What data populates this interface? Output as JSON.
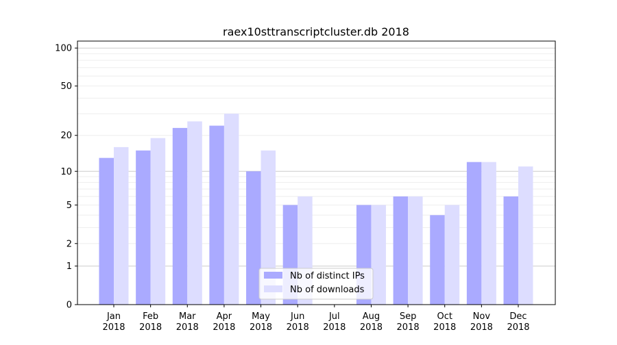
{
  "chart_data": {
    "type": "bar",
    "title": "raex10sttranscriptcluster.db 2018",
    "xlabel": "",
    "ylabel": "",
    "yscale": "log(1+y)",
    "ylim": [
      0,
      113.5
    ],
    "yticks": [
      0,
      1,
      2,
      5,
      10,
      20,
      50,
      100
    ],
    "grid": true,
    "legend_position": "bottom-center",
    "categories": [
      "Jan\n2018",
      "Feb\n2018",
      "Mar\n2018",
      "Apr\n2018",
      "May\n2018",
      "Jun\n2018",
      "Jul\n2018",
      "Aug\n2018",
      "Sep\n2018",
      "Oct\n2018",
      "Nov\n2018",
      "Dec\n2018"
    ],
    "series": [
      {
        "name": "Nb of distinct IPs",
        "color": "#aaaaff",
        "values": [
          13,
          15,
          23,
          24,
          10,
          5,
          0,
          5,
          6,
          4,
          12,
          6
        ]
      },
      {
        "name": "Nb of downloads",
        "color": "#ddddff",
        "values": [
          16,
          19,
          26,
          30,
          15,
          6,
          0,
          5,
          6,
          5,
          12,
          11
        ]
      }
    ]
  }
}
